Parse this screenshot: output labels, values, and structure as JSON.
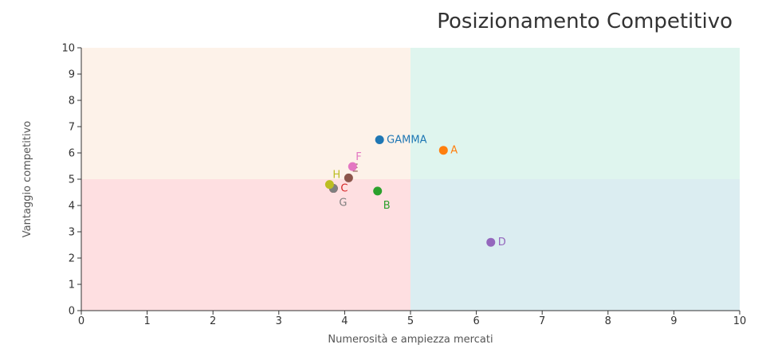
{
  "chart_data": {
    "type": "scatter",
    "title": "Posizionamento Competitivo",
    "xlabel": "Numerosità e ampiezza mercati",
    "ylabel": "Vantaggio competitivo",
    "xlim": [
      0,
      10
    ],
    "ylim": [
      0,
      10
    ],
    "xticks": [
      "0",
      "1",
      "2",
      "3",
      "4",
      "5",
      "6",
      "7",
      "8",
      "9",
      "10"
    ],
    "yticks": [
      "0",
      "1",
      "2",
      "3",
      "4",
      "5",
      "6",
      "7",
      "8",
      "9",
      "10"
    ],
    "grid": false,
    "quadrants": [
      {
        "x": [
          0,
          5
        ],
        "y": [
          5,
          10
        ],
        "color": "#fdf2e9"
      },
      {
        "x": [
          5,
          10
        ],
        "y": [
          5,
          10
        ],
        "color": "#dff5ee"
      },
      {
        "x": [
          0,
          5
        ],
        "y": [
          0,
          5
        ],
        "color": "#fedfe1"
      },
      {
        "x": [
          5,
          10
        ],
        "y": [
          0,
          5
        ],
        "color": "#dbedf1"
      }
    ],
    "points": [
      {
        "name": "GAMMA",
        "x": 4.53,
        "y": 6.5,
        "color": "#1f77b4",
        "label_pos": "right"
      },
      {
        "name": "A",
        "x": 5.5,
        "y": 6.1,
        "color": "#ff7f0e",
        "label_pos": "right"
      },
      {
        "name": "B",
        "x": 4.5,
        "y": 4.55,
        "color": "#2ca02c",
        "label_pos": "below-right"
      },
      {
        "name": "C",
        "x": 3.83,
        "y": 4.65,
        "color": "#d62728",
        "label_pos": "right"
      },
      {
        "name": "D",
        "x": 6.22,
        "y": 2.6,
        "color": "#9467bd",
        "label_pos": "right"
      },
      {
        "name": "E",
        "x": 4.06,
        "y": 5.05,
        "color": "#8c564b",
        "label_pos": "above-right"
      },
      {
        "name": "F",
        "x": 4.12,
        "y": 5.48,
        "color": "#e377c2",
        "label_pos": "above-right"
      },
      {
        "name": "G",
        "x": 3.83,
        "y": 4.65,
        "color": "#7f7f7f",
        "label_pos": "below-right"
      },
      {
        "name": "H",
        "x": 3.77,
        "y": 4.8,
        "color": "#bcbd22",
        "label_pos": "above-right"
      }
    ]
  }
}
